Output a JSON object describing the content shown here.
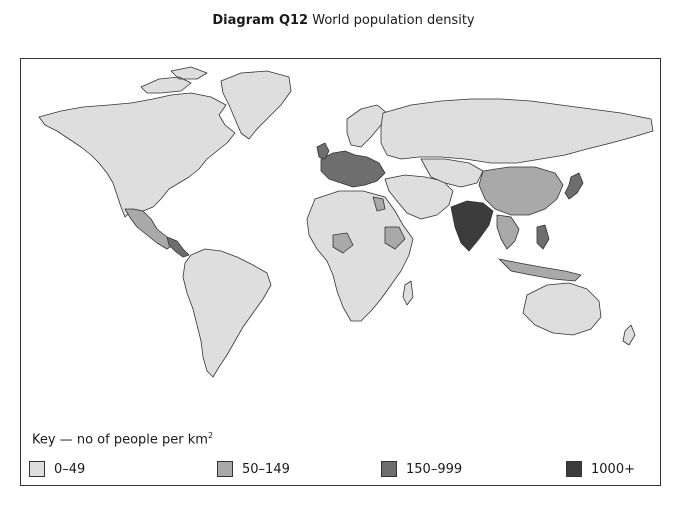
{
  "title": {
    "prefix": "Diagram Q12",
    "text": "World population density"
  },
  "key": {
    "label": "Key — no of people per km",
    "unit_superscript": "2",
    "classes": [
      {
        "label": "0–49",
        "color": "#dedede"
      },
      {
        "label": "50–149",
        "color": "#a9a9a9"
      },
      {
        "label": "150–999",
        "color": "#6e6e6e"
      },
      {
        "label": "1000+",
        "color": "#3c3c3c"
      }
    ]
  },
  "colors": {
    "border": "#333333",
    "background": "#ffffff"
  }
}
